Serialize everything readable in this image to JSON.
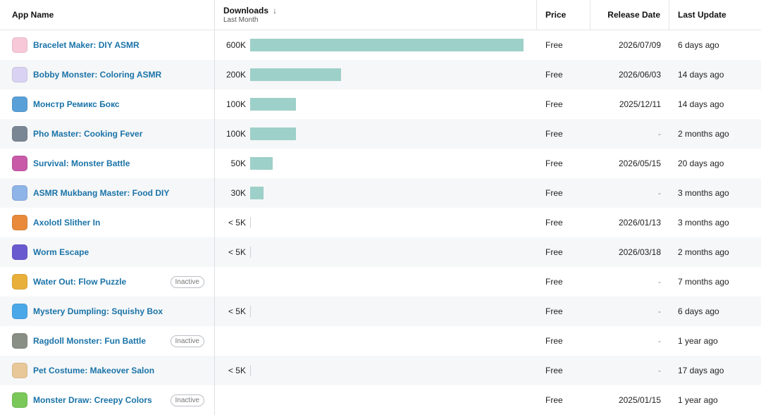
{
  "header": {
    "app_name": "App Name",
    "downloads": "Downloads",
    "downloads_sub": "Last Month",
    "price": "Price",
    "release_date": "Release Date",
    "last_update": "Last Update"
  },
  "max_downloads": 600000,
  "rows": [
    {
      "name": "Bracelet Maker: DIY ASMR",
      "downloads": "600K",
      "downloads_value": 600000,
      "price": "Free",
      "release": "2026/07/09",
      "update": "6 days ago",
      "inactive": "",
      "icon": "bracelet-icon",
      "icon_color": "#f7c8d8"
    },
    {
      "name": "Bobby Monster: Coloring ASMR",
      "downloads": "200K",
      "downloads_value": 200000,
      "price": "Free",
      "release": "2026/06/03",
      "update": "14 days ago",
      "inactive": "",
      "icon": "monster-icon",
      "icon_color": "#d9d2f2"
    },
    {
      "name": "Монстр Ремикс Бокс",
      "downloads": "100K",
      "downloads_value": 100000,
      "price": "Free",
      "release": "2025/12/11",
      "update": "14 days ago",
      "inactive": "",
      "icon": "remix-box-icon",
      "icon_color": "#5aa0d8"
    },
    {
      "name": "Pho Master: Cooking Fever",
      "downloads": "100K",
      "downloads_value": 100000,
      "price": "Free",
      "release": "-",
      "update": "2 months ago",
      "inactive": "",
      "icon": "pho-icon",
      "icon_color": "#7a8694"
    },
    {
      "name": "Survival: Monster Battle",
      "downloads": "50K",
      "downloads_value": 50000,
      "price": "Free",
      "release": "2026/05/15",
      "update": "20 days ago",
      "inactive": "",
      "icon": "battle-icon",
      "icon_color": "#c85aa8"
    },
    {
      "name": "ASMR Mukbang Master: Food DIY",
      "downloads": "30K",
      "downloads_value": 30000,
      "price": "Free",
      "release": "-",
      "update": "3 months ago",
      "inactive": "",
      "icon": "mukbang-icon",
      "icon_color": "#8fb4e8"
    },
    {
      "name": "Axolotl Slither In",
      "downloads": "< 5K",
      "downloads_value": 0,
      "price": "Free",
      "release": "2026/01/13",
      "update": "3 months ago",
      "inactive": "",
      "icon": "axolotl-icon",
      "icon_color": "#e88a3a"
    },
    {
      "name": "Worm Escape",
      "downloads": "< 5K",
      "downloads_value": 0,
      "price": "Free",
      "release": "2026/03/18",
      "update": "2 months ago",
      "inactive": "",
      "icon": "worm-icon",
      "icon_color": "#6a5ad0"
    },
    {
      "name": "Water Out: Flow Puzzle",
      "downloads": "",
      "downloads_value": 0,
      "price": "Free",
      "release": "-",
      "update": "7 months ago",
      "inactive": "Inactive",
      "icon": "water-icon",
      "icon_color": "#e8b03a"
    },
    {
      "name": "Mystery Dumpling: Squishy Box",
      "downloads": "< 5K",
      "downloads_value": 0,
      "price": "Free",
      "release": "-",
      "update": "6 days ago",
      "inactive": "",
      "icon": "dumpling-icon",
      "icon_color": "#4aa8e8"
    },
    {
      "name": "Ragdoll Monster: Fun Battle",
      "downloads": "",
      "downloads_value": 0,
      "price": "Free",
      "release": "-",
      "update": "1 year ago",
      "inactive": "Inactive",
      "icon": "ragdoll-icon",
      "icon_color": "#8a8f86"
    },
    {
      "name": "Pet Costume: Makeover Salon",
      "downloads": "< 5K",
      "downloads_value": 0,
      "price": "Free",
      "release": "-",
      "update": "17 days ago",
      "inactive": "",
      "icon": "pet-icon",
      "icon_color": "#e8c898"
    },
    {
      "name": "Monster Draw: Creepy Colors",
      "downloads": "",
      "downloads_value": 0,
      "price": "Free",
      "release": "2025/01/15",
      "update": "1 year ago",
      "inactive": "Inactive",
      "icon": "draw-icon",
      "icon_color": "#7ac85a"
    }
  ]
}
